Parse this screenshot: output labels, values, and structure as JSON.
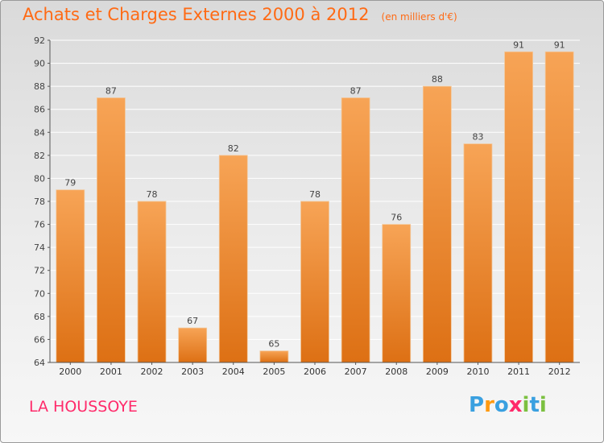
{
  "title": "Achats et Charges Externes 2000 à 2012",
  "subtitle": "(en milliers d'€)",
  "commune": "LA HOUSSOYE",
  "logo": {
    "text": "Proxiti",
    "letters": [
      {
        "ch": "P",
        "color": "#3aa0e0"
      },
      {
        "ch": "r",
        "color": "#ff9a10"
      },
      {
        "ch": "o",
        "color": "#3aa0e0"
      },
      {
        "ch": "x",
        "color": "#ff2a6a"
      },
      {
        "ch": "i",
        "color": "#7cc040"
      },
      {
        "ch": "t",
        "color": "#3aa0e0"
      },
      {
        "ch": "i",
        "color": "#7cc040"
      }
    ]
  },
  "colors": {
    "title": "#ff6a14",
    "commune": "#ff2a6a",
    "bar_top": "#f7a456",
    "bar_bottom": "#dd7014",
    "grid": "#ffffff",
    "axis": "#555555"
  },
  "chart_data": {
    "type": "bar",
    "categories": [
      "2000",
      "2001",
      "2002",
      "2003",
      "2004",
      "2005",
      "2006",
      "2007",
      "2008",
      "2009",
      "2010",
      "2011",
      "2012"
    ],
    "values": [
      79,
      87,
      78,
      67,
      82,
      65,
      78,
      87,
      76,
      88,
      83,
      91,
      91
    ],
    "ylim": [
      64,
      92
    ],
    "yticks": [
      64,
      66,
      68,
      70,
      72,
      74,
      76,
      78,
      80,
      82,
      84,
      86,
      88,
      90,
      92
    ],
    "grid": true,
    "xlabel": "",
    "ylabel": ""
  }
}
